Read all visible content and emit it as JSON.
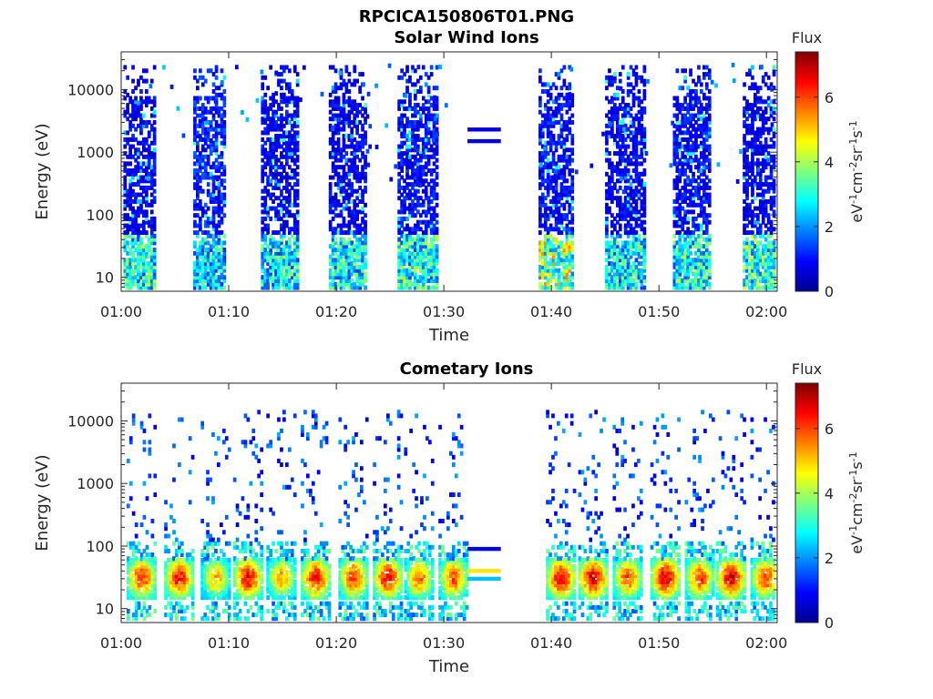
{
  "figure_title": "RPCICA150806T01.PNG",
  "chart_data": [
    {
      "type": "heatmap",
      "title": "Solar Wind Ions",
      "xlabel": "Time",
      "ylabel": "Energy (eV)",
      "x_ticks": [
        "01:00",
        "01:10",
        "01:20",
        "01:30",
        "01:40",
        "01:50",
        "02:00"
      ],
      "y_ticks": [
        "10",
        "100",
        "1000",
        "10000"
      ],
      "y_scale": "log",
      "ylim": [
        6,
        40000
      ],
      "xlim_minutes": [
        0,
        61
      ],
      "colorbar": {
        "label": "Flux",
        "unit": "eV-1cm-2sr-1s-1",
        "range": [
          0,
          7.4
        ],
        "ticks": [
          "0",
          "2",
          "4",
          "6"
        ]
      },
      "bursts": [
        {
          "start_min": 0.2,
          "end_min": 3.2,
          "low_flux": 3.5,
          "high_flux": 0.7
        },
        {
          "start_min": 6.7,
          "end_min": 9.5,
          "low_flux": 3.0,
          "high_flux": 0.9
        },
        {
          "start_min": 13.0,
          "end_min": 16.3,
          "low_flux": 3.3,
          "high_flux": 0.7
        },
        {
          "start_min": 19.3,
          "end_min": 22.7,
          "low_flux": 3.3,
          "high_flux": 0.7
        },
        {
          "start_min": 25.7,
          "end_min": 29.3,
          "low_flux": 3.5,
          "high_flux": 0.8
        },
        {
          "start_min": 38.8,
          "end_min": 42.0,
          "low_flux": 4.6,
          "high_flux": 0.8
        },
        {
          "start_min": 45.0,
          "end_min": 48.7,
          "low_flux": 3.3,
          "high_flux": 0.7
        },
        {
          "start_min": 51.3,
          "end_min": 54.7,
          "low_flux": 3.5,
          "high_flux": 0.8
        },
        {
          "start_min": 57.8,
          "end_min": 61.0,
          "low_flux": 3.7,
          "high_flux": 0.7
        }
      ],
      "calibration_lines": [
        {
          "start_min": 32.2,
          "end_min": 35.3,
          "energy_ev": 2300,
          "flux": 0.7
        },
        {
          "start_min": 32.2,
          "end_min": 35.3,
          "energy_ev": 1500,
          "flux": 0.7
        }
      ]
    },
    {
      "type": "heatmap",
      "title": "Cometary Ions",
      "xlabel": "Time",
      "ylabel": "Energy (eV)",
      "x_ticks": [
        "01:00",
        "01:10",
        "01:20",
        "01:30",
        "01:40",
        "01:50",
        "02:00"
      ],
      "y_ticks": [
        "10",
        "100",
        "1000",
        "10000"
      ],
      "y_scale": "log",
      "ylim": [
        6,
        40000
      ],
      "xlim_minutes": [
        0,
        61
      ],
      "colorbar": {
        "label": "Flux",
        "unit": "eV-1cm-2sr-1s-1",
        "range": [
          0,
          7.4
        ],
        "ticks": [
          "0",
          "2",
          "4",
          "6"
        ]
      },
      "peak_energy_band_ev": [
        15,
        60
      ],
      "clusters": [
        {
          "center_min": 1.8,
          "peak_flux": 6.3
        },
        {
          "center_min": 5.3,
          "peak_flux": 6.5
        },
        {
          "center_min": 8.7,
          "peak_flux": 5.3
        },
        {
          "center_min": 11.7,
          "peak_flux": 6.7
        },
        {
          "center_min": 14.8,
          "peak_flux": 5.5
        },
        {
          "center_min": 18.0,
          "peak_flux": 6.6
        },
        {
          "center_min": 21.5,
          "peak_flux": 6.2
        },
        {
          "center_min": 24.7,
          "peak_flux": 6.7
        },
        {
          "center_min": 27.6,
          "peak_flux": 5.8
        },
        {
          "center_min": 30.8,
          "peak_flux": 6.0
        },
        {
          "center_min": 40.8,
          "peak_flux": 6.8
        },
        {
          "center_min": 43.8,
          "peak_flux": 6.9
        },
        {
          "center_min": 47.0,
          "peak_flux": 6.0
        },
        {
          "center_min": 50.5,
          "peak_flux": 6.9
        },
        {
          "center_min": 53.7,
          "peak_flux": 6.1
        },
        {
          "center_min": 56.6,
          "peak_flux": 6.9
        },
        {
          "center_min": 59.8,
          "peak_flux": 6.2
        }
      ],
      "calibration_lines": [
        {
          "start_min": 32.2,
          "end_min": 35.3,
          "energy_ev": 90,
          "flux": 0.8
        },
        {
          "start_min": 32.2,
          "end_min": 35.3,
          "energy_ev": 40,
          "flux": 4.8
        },
        {
          "start_min": 32.2,
          "end_min": 35.3,
          "energy_ev": 30,
          "flux": 2.3
        }
      ]
    }
  ]
}
